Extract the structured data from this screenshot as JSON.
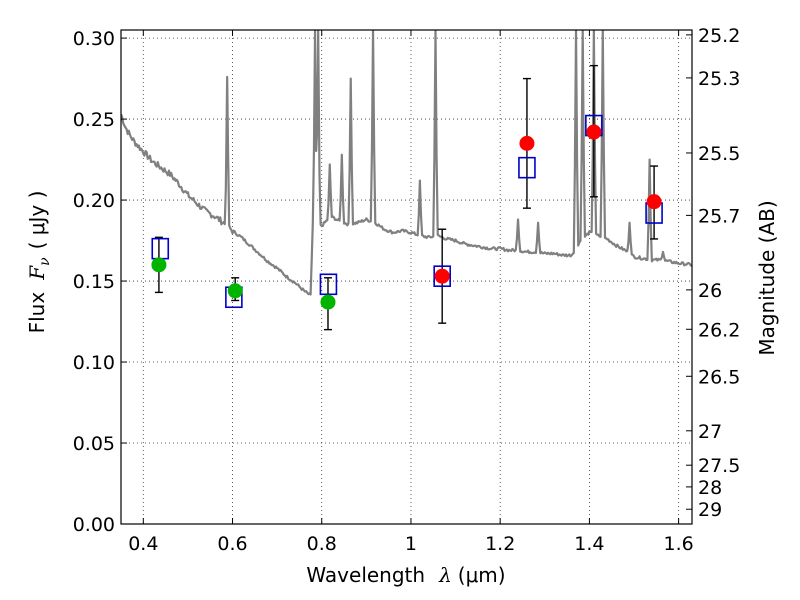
{
  "chart_data": {
    "type": "scatter",
    "title": "",
    "xlabel": {
      "text": "Wavelength",
      "symbol": "λ",
      "unit": "(μm)"
    },
    "ylabel": {
      "text": "Flux",
      "symbol": "F",
      "subscript": "ν",
      "unit": "( μJy )"
    },
    "ylabel_right": "Magnitude (AB)",
    "xlim": [
      0.35,
      1.63
    ],
    "ylim": [
      0.0,
      0.305
    ],
    "grid": true,
    "x_ticks": [
      {
        "v": 0.4,
        "label": "0.4"
      },
      {
        "v": 0.6,
        "label": "0.6"
      },
      {
        "v": 0.8,
        "label": "0.8"
      },
      {
        "v": 1.0,
        "label": "1"
      },
      {
        "v": 1.2,
        "label": "1.2"
      },
      {
        "v": 1.4,
        "label": "1.4"
      },
      {
        "v": 1.6,
        "label": "1.6"
      }
    ],
    "y_ticks": [
      {
        "v": 0.0,
        "label": "0.00"
      },
      {
        "v": 0.05,
        "label": "0.05"
      },
      {
        "v": 0.1,
        "label": "0.10"
      },
      {
        "v": 0.15,
        "label": "0.15"
      },
      {
        "v": 0.2,
        "label": "0.20"
      },
      {
        "v": 0.25,
        "label": "0.25"
      },
      {
        "v": 0.3,
        "label": "0.30"
      }
    ],
    "right_ticks": [
      {
        "label": "25.2",
        "mag": 25.2
      },
      {
        "label": "25.3",
        "mag": 25.3
      },
      {
        "label": "25.5",
        "mag": 25.5
      },
      {
        "label": "25.7",
        "mag": 25.7
      },
      {
        "label": "26",
        "mag": 26.0
      },
      {
        "label": "26.2",
        "mag": 26.2
      },
      {
        "label": "26.5",
        "mag": 26.5
      },
      {
        "label": "27",
        "mag": 27.0
      },
      {
        "label": "27.5",
        "mag": 27.5
      },
      {
        "label": "28",
        "mag": 28.0
      },
      {
        "label": "29",
        "mag": 29.0
      }
    ],
    "colors": {
      "spectrum": "#808080",
      "observed_green": "#00b400",
      "observed_red": "#ff0000",
      "model": "#0000cc",
      "errorbar": "#000000"
    },
    "spectrum": {
      "baseline": [
        [
          0.35,
          0.253
        ],
        [
          0.36,
          0.245
        ],
        [
          0.37,
          0.24
        ],
        [
          0.38,
          0.236
        ],
        [
          0.4,
          0.23
        ],
        [
          0.42,
          0.224
        ],
        [
          0.44,
          0.22
        ],
        [
          0.46,
          0.216
        ],
        [
          0.48,
          0.21
        ],
        [
          0.5,
          0.203
        ],
        [
          0.52,
          0.198
        ],
        [
          0.54,
          0.193
        ],
        [
          0.56,
          0.19
        ],
        [
          0.58,
          0.186
        ],
        [
          0.6,
          0.181
        ],
        [
          0.62,
          0.177
        ],
        [
          0.64,
          0.172
        ],
        [
          0.66,
          0.167
        ],
        [
          0.68,
          0.162
        ],
        [
          0.7,
          0.158
        ],
        [
          0.72,
          0.153
        ],
        [
          0.74,
          0.149
        ],
        [
          0.76,
          0.144
        ],
        [
          0.775,
          0.141
        ],
        [
          0.78,
          0.186
        ],
        [
          0.8,
          0.184
        ],
        [
          0.82,
          0.19
        ],
        [
          0.84,
          0.187
        ],
        [
          0.86,
          0.185
        ],
        [
          0.88,
          0.186
        ],
        [
          0.9,
          0.188
        ],
        [
          0.92,
          0.186
        ],
        [
          0.94,
          0.182
        ],
        [
          0.96,
          0.18
        ],
        [
          0.98,
          0.181
        ],
        [
          1.0,
          0.18
        ],
        [
          1.02,
          0.178
        ],
        [
          1.04,
          0.177
        ],
        [
          1.06,
          0.178
        ],
        [
          1.08,
          0.176
        ],
        [
          1.1,
          0.175
        ],
        [
          1.12,
          0.173
        ],
        [
          1.14,
          0.172
        ],
        [
          1.16,
          0.171
        ],
        [
          1.18,
          0.17
        ],
        [
          1.2,
          0.17
        ],
        [
          1.22,
          0.169
        ],
        [
          1.24,
          0.169
        ],
        [
          1.26,
          0.168
        ],
        [
          1.28,
          0.168
        ],
        [
          1.3,
          0.167
        ],
        [
          1.32,
          0.167
        ],
        [
          1.34,
          0.166
        ],
        [
          1.36,
          0.166
        ],
        [
          1.38,
          0.175
        ],
        [
          1.4,
          0.18
        ],
        [
          1.42,
          0.178
        ],
        [
          1.44,
          0.176
        ],
        [
          1.46,
          0.172
        ],
        [
          1.48,
          0.169
        ],
        [
          1.5,
          0.165
        ],
        [
          1.52,
          0.164
        ],
        [
          1.54,
          0.163
        ],
        [
          1.56,
          0.163
        ],
        [
          1.58,
          0.162
        ],
        [
          1.6,
          0.161
        ],
        [
          1.63,
          0.16
        ]
      ],
      "lines": [
        {
          "x": 0.588,
          "peak": 0.276
        },
        {
          "x": 0.785,
          "peak": 0.305
        },
        {
          "x": 0.792,
          "peak": 0.305
        },
        {
          "x": 0.818,
          "peak": 0.222
        },
        {
          "x": 0.845,
          "peak": 0.228
        },
        {
          "x": 0.865,
          "peak": 0.275
        },
        {
          "x": 0.915,
          "peak": 0.305
        },
        {
          "x": 1.02,
          "peak": 0.212
        },
        {
          "x": 1.055,
          "peak": 0.305
        },
        {
          "x": 1.24,
          "peak": 0.188
        },
        {
          "x": 1.285,
          "peak": 0.186
        },
        {
          "x": 1.37,
          "peak": 0.305
        },
        {
          "x": 1.385,
          "peak": 0.305
        },
        {
          "x": 1.41,
          "peak": 0.305
        },
        {
          "x": 1.43,
          "peak": 0.305
        },
        {
          "x": 1.49,
          "peak": 0.186
        },
        {
          "x": 1.535,
          "peak": 0.225
        },
        {
          "x": 1.565,
          "peak": 0.168
        }
      ]
    },
    "observed": [
      {
        "x": 0.435,
        "y": 0.16,
        "err_lo": 0.017,
        "err_hi": 0.017,
        "color": "green"
      },
      {
        "x": 0.606,
        "y": 0.144,
        "err_lo": 0.006,
        "err_hi": 0.008,
        "color": "green"
      },
      {
        "x": 0.814,
        "y": 0.137,
        "err_lo": 0.017,
        "err_hi": 0.015,
        "color": "green"
      },
      {
        "x": 1.07,
        "y": 0.153,
        "err_lo": 0.029,
        "err_hi": 0.029,
        "color": "red"
      },
      {
        "x": 1.26,
        "y": 0.235,
        "err_lo": 0.04,
        "err_hi": 0.04,
        "color": "red"
      },
      {
        "x": 1.41,
        "y": 0.242,
        "err_lo": 0.04,
        "err_hi": 0.041,
        "color": "red"
      },
      {
        "x": 1.545,
        "y": 0.199,
        "err_lo": 0.023,
        "err_hi": 0.022,
        "color": "red"
      }
    ],
    "model": [
      {
        "x": 0.438,
        "y": 0.17
      },
      {
        "x": 0.603,
        "y": 0.14
      },
      {
        "x": 0.815,
        "y": 0.148
      },
      {
        "x": 1.07,
        "y": 0.153
      },
      {
        "x": 1.26,
        "y": 0.22
      },
      {
        "x": 1.41,
        "y": 0.246
      },
      {
        "x": 1.545,
        "y": 0.192
      }
    ]
  }
}
